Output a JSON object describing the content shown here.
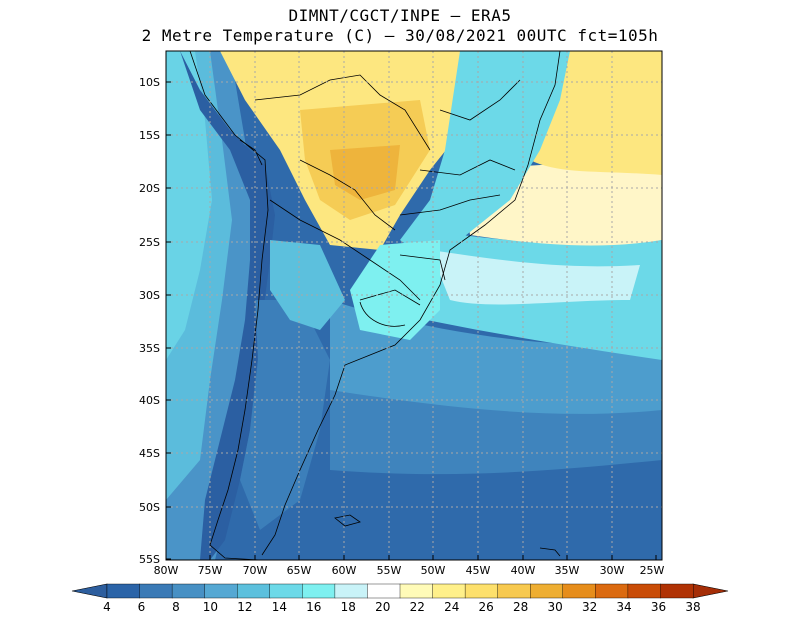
{
  "title": {
    "line1": "DIMNT/CGCT/INPE –  ERA5",
    "line2": "2 Metre Temperature (C) –  30/08/2021 00UTC fct=105h"
  },
  "axes": {
    "lat_labels": [
      "10S",
      "15S",
      "20S",
      "25S",
      "30S",
      "35S",
      "40S",
      "45S",
      "50S",
      "55S"
    ],
    "lon_labels": [
      "80W",
      "75W",
      "70W",
      "65W",
      "60W",
      "55W",
      "50W",
      "45W",
      "40W",
      "35W",
      "30W",
      "25W"
    ],
    "lat_range": [
      -55,
      -7.5
    ],
    "lon_range": [
      -80,
      -24.5
    ]
  },
  "colorbar": {
    "labels": [
      "4",
      "6",
      "8",
      "10",
      "12",
      "14",
      "16",
      "18",
      "20",
      "22",
      "24",
      "26",
      "28",
      "30",
      "32",
      "34",
      "36",
      "38"
    ],
    "colors": [
      "#2b64a8",
      "#3a7ab6",
      "#4790c4",
      "#55a8d3",
      "#5cc0dd",
      "#6cd9e8",
      "#7ef0f0",
      "#c9f3f8",
      "#ffffff",
      "#fffbb8",
      "#fff08a",
      "#fde06c",
      "#f7c94f",
      "#eeae32",
      "#e68d1b",
      "#db6a10",
      "#c94c07",
      "#b03204"
    ],
    "left_arrow_color": "#2d5e9e",
    "right_arrow_color": "#a52e07"
  }
}
